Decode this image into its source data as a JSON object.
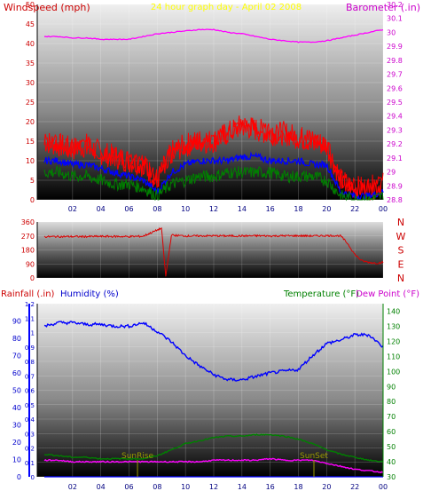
{
  "title": "24 hour graph day - April 02 2008",
  "colors": {
    "wind": "#ff0000",
    "wind_avg": "#0000ff",
    "wind_low": "#008000",
    "barometer": "#ff00ff",
    "direction": "#dd0000",
    "humidity": "#0000ff",
    "temperature": "#008000",
    "dewpoint": "#ff00ff",
    "rain": "#0000ff",
    "sun": "#999900",
    "title": "#ffff00"
  },
  "chart_data": [
    {
      "type": "line",
      "left_label": "Windspeed (mph)",
      "right_label": "Barometer (.in)",
      "left_ylim": [
        0,
        50
      ],
      "left_ticks": [
        "0",
        "5",
        "10",
        "15",
        "20",
        "25",
        "30",
        "35",
        "40",
        "45",
        "50"
      ],
      "right_ylim": [
        28.8,
        30.2
      ],
      "right_ticks": [
        "28.8",
        "28.9",
        "29",
        "29.1",
        "29.2",
        "29.3",
        "29.4",
        "29.5",
        "29.6",
        "29.7",
        "29.8",
        "29.9",
        "30",
        "30.1",
        "30.2"
      ],
      "x_ticks": [
        "02",
        "04",
        "06",
        "08",
        "10",
        "12",
        "14",
        "16",
        "18",
        "20",
        "22",
        "00"
      ],
      "x": [
        0,
        1,
        2,
        3,
        4,
        5,
        6,
        7,
        8,
        9,
        10,
        11,
        12,
        13,
        14,
        15,
        16,
        17,
        18,
        19,
        20,
        21,
        22,
        23,
        24
      ],
      "series": [
        {
          "key": "gust",
          "values": [
            15,
            14,
            13,
            14,
            12,
            11,
            10,
            9,
            5,
            12,
            14,
            15,
            15,
            17,
            19,
            18,
            17,
            17,
            16,
            15,
            14,
            5,
            3,
            3,
            4
          ]
        },
        {
          "key": "avg",
          "values": [
            10,
            10,
            9,
            9,
            8,
            7,
            6,
            5,
            2,
            7,
            9,
            10,
            10,
            10,
            11,
            11,
            10,
            10,
            10,
            9,
            9,
            2,
            1,
            1,
            2
          ]
        },
        {
          "key": "low",
          "values": [
            7,
            7,
            6,
            6,
            5,
            4,
            4,
            3,
            1,
            4,
            5,
            6,
            6,
            7,
            7,
            7,
            7,
            6,
            6,
            6,
            5,
            1,
            0,
            0,
            1
          ]
        },
        {
          "key": "barometer",
          "values": [
            29.97,
            29.97,
            29.96,
            29.96,
            29.95,
            29.95,
            29.95,
            29.97,
            29.99,
            30.0,
            30.01,
            30.02,
            30.02,
            30.0,
            29.99,
            29.97,
            29.95,
            29.94,
            29.93,
            29.93,
            29.94,
            29.96,
            29.98,
            30.0,
            30.02
          ]
        }
      ]
    },
    {
      "type": "line",
      "left_ticks": [
        "0",
        "90",
        "180",
        "270",
        "360"
      ],
      "left_ylim": [
        0,
        360
      ],
      "compass_labels": [
        "N",
        "W",
        "S",
        "E",
        "N"
      ],
      "x": [
        0,
        1,
        2,
        3,
        4,
        5,
        6,
        7,
        7.8,
        8.3,
        8.6,
        9,
        10,
        11,
        12,
        13,
        14,
        15,
        16,
        17,
        18,
        19,
        20,
        20.5,
        21,
        21.5,
        22,
        22.5,
        23,
        23.5,
        24
      ],
      "series": [
        {
          "key": "direction",
          "values": [
            265,
            266,
            266,
            266,
            267,
            267,
            266,
            268,
            300,
            320,
            10,
            275,
            270,
            270,
            271,
            270,
            270,
            271,
            270,
            271,
            271,
            270,
            272,
            272,
            270,
            220,
            150,
            110,
            100,
            95,
            100
          ]
        }
      ]
    },
    {
      "type": "line",
      "left_label_a": "Rainfall (.in)",
      "left_label_b": "Humidity (%)",
      "right_label_a": "Temperature (°F)",
      "right_label_b": "Dew Point (°F)",
      "rain_ticks": [
        "0",
        "0.1",
        "0.2",
        "0.3",
        "0.4",
        "0.5",
        "0.6",
        "0.7",
        "0.8",
        "0.9",
        "1",
        "1.1",
        "1.2"
      ],
      "rain_ylim": [
        0,
        1.2
      ],
      "humidity_ticks": [
        "0",
        "10",
        "20",
        "30",
        "40",
        "50",
        "60",
        "70",
        "80",
        "90"
      ],
      "humidity_ylim": [
        0,
        100
      ],
      "temp_ticks": [
        "30",
        "40",
        "50",
        "60",
        "70",
        "80",
        "90",
        "100",
        "110",
        "120",
        "130",
        "140"
      ],
      "temp_ylim": [
        30,
        145
      ],
      "sunrise_label": "SunRise",
      "sunset_label": "SunSet",
      "sunrise_x": 6.6,
      "sunset_x": 19.1,
      "x_ticks": [
        "02",
        "04",
        "06",
        "08",
        "10",
        "12",
        "14",
        "16",
        "18",
        "20",
        "22",
        "00"
      ],
      "x": [
        0,
        1,
        2,
        3,
        4,
        5,
        6,
        7,
        8,
        9,
        10,
        11,
        12,
        13,
        14,
        15,
        16,
        17,
        18,
        19,
        20,
        21,
        22,
        23,
        24
      ],
      "series": [
        {
          "key": "humidity",
          "values": [
            87,
            89,
            89,
            88,
            88,
            87,
            87,
            89,
            84,
            78,
            70,
            64,
            59,
            56,
            56,
            58,
            60,
            61,
            62,
            70,
            77,
            79,
            82,
            82,
            75
          ]
        },
        {
          "key": "temperature",
          "values": [
            45,
            44,
            43,
            43,
            42,
            42,
            42,
            42,
            44,
            48,
            52,
            54,
            56,
            57,
            57,
            58,
            58,
            57,
            55,
            52,
            48,
            45,
            43,
            41,
            40
          ]
        },
        {
          "key": "dewpoint",
          "values": [
            41,
            41,
            40,
            40,
            40,
            40,
            40,
            40,
            40,
            40,
            40,
            40,
            41,
            41,
            41,
            41,
            42,
            41,
            41,
            41,
            39,
            37,
            35,
            34,
            33
          ]
        },
        {
          "key": "rain",
          "values": [
            0,
            0,
            0,
            0,
            0,
            0,
            0,
            0,
            0,
            0,
            0,
            0,
            0,
            0,
            0,
            0,
            0,
            0,
            0,
            0,
            0,
            0,
            0,
            0,
            0
          ]
        }
      ]
    }
  ]
}
